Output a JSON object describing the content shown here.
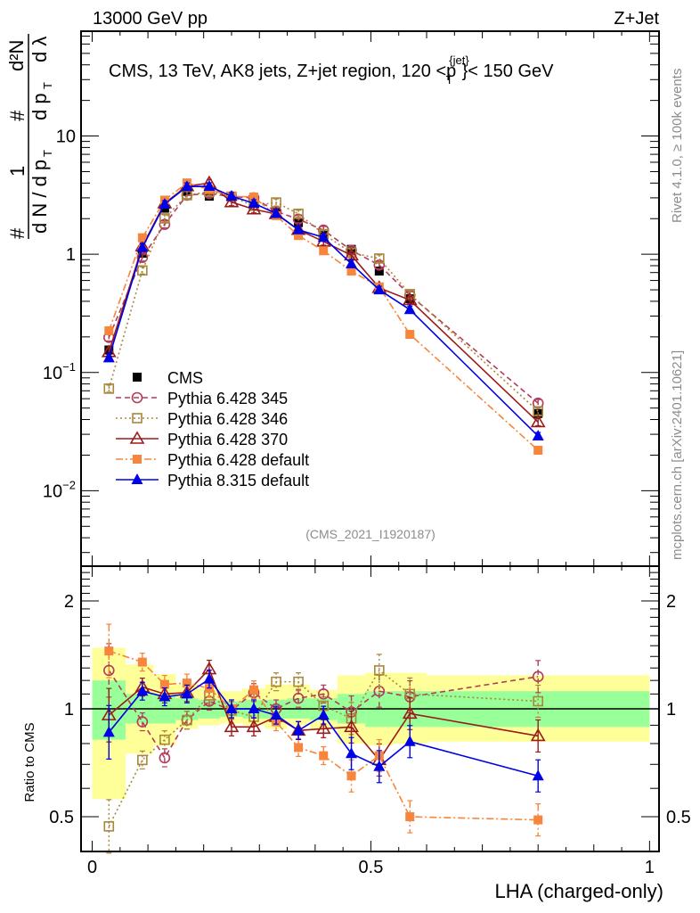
{
  "header": {
    "left": "13000 GeV pp",
    "right": "Z+Jet"
  },
  "side_labels": {
    "rivet": "Rivet 4.1.0, ≥ 100k events",
    "mcplots": "mcplots.cern.ch [arXiv:2401.10621]"
  },
  "chart_data": [
    {
      "type": "line",
      "panel": "main",
      "title": "CMS, 13 TeV, AK8 jets, Z+jet region, 120 <p_T^{jet}< 150 GeV",
      "title_parts": {
        "main": "CMS, 13 TeV, AK8 jets, Z+jet region, 120 <p",
        "sup": "{jet}",
        "sub": "T",
        "tail": "}< 150 GeV"
      },
      "analysis_id": "(CMS_2021_I1920187)",
      "ylabel": "1/dN/dp_T d²N/dp_T dλ",
      "yscale": "log",
      "ylim": [
        0.0023,
        77
      ],
      "xlim": [
        -0.02,
        1.017
      ],
      "yticks": [
        {
          "value": 0.01,
          "base": "10",
          "exp": "−2"
        },
        {
          "value": 0.1,
          "base": "10",
          "exp": "−1"
        },
        {
          "value": 1,
          "label": "1"
        },
        {
          "value": 10,
          "label": "10"
        }
      ],
      "legend_position": "lower-left",
      "x": [
        0.03,
        0.09,
        0.13,
        0.17,
        0.21,
        0.25,
        0.29,
        0.33,
        0.37,
        0.415,
        0.465,
        0.515,
        0.57,
        0.8
      ],
      "series": [
        {
          "name": "CMS",
          "style": "data",
          "color": "#000000",
          "marker": "square-filled",
          "values": [
            0.155,
            1.02,
            2.45,
            3.4,
            3.1,
            3.1,
            2.7,
            2.3,
            1.85,
            1.45,
            1.1,
            0.72,
            0.42,
            0.045
          ]
        },
        {
          "name": "Pythia 6.428 345",
          "color": "#b23b5a",
          "marker": "circle-open",
          "dash": "6,4",
          "values": [
            0.198,
            0.94,
            1.79,
            3.16,
            3.26,
            3.07,
            3.0,
            2.3,
            1.98,
            1.6,
            1.08,
            0.81,
            0.45,
            0.055
          ]
        },
        {
          "name": "Pythia 6.428 346",
          "color": "#a8863c",
          "marker": "square-open",
          "dash": "2,3",
          "values": [
            0.073,
            0.73,
            2.01,
            3.16,
            3.38,
            3.07,
            2.57,
            2.74,
            2.2,
            1.48,
            1.03,
            0.92,
            0.46,
            0.047
          ]
        },
        {
          "name": "Pythia 6.428 370",
          "color": "#9b1b1b",
          "marker": "triangle-open",
          "dash": "",
          "values": [
            0.149,
            1.17,
            2.7,
            3.77,
            4.0,
            2.76,
            2.4,
            2.19,
            1.61,
            1.28,
            0.98,
            0.52,
            0.41,
            0.038
          ]
        },
        {
          "name": "Pythia 6.428 default",
          "color": "#f7853b",
          "marker": "square-filled",
          "dash": "8,3,2,3",
          "values": [
            0.225,
            1.38,
            2.87,
            4.01,
            3.53,
            3.1,
            3.05,
            2.12,
            1.44,
            1.07,
            0.72,
            0.53,
            0.21,
            0.022
          ]
        },
        {
          "name": "Pythia 8.315 default",
          "color": "#0000e6",
          "marker": "triangle-filled",
          "dash": "",
          "values": [
            0.133,
            1.14,
            2.65,
            3.74,
            3.75,
            3.1,
            2.7,
            2.21,
            1.61,
            1.39,
            0.83,
            0.5,
            0.34,
            0.029
          ]
        }
      ]
    },
    {
      "type": "line",
      "panel": "ratio",
      "ylabel": "Ratio to CMS",
      "xlabel": "LHA (charged-only)",
      "yscale": "log",
      "ylim": [
        0.4,
        2.5
      ],
      "xlim": [
        -0.02,
        1.017
      ],
      "xticks": [
        {
          "value": 0,
          "label": "0"
        },
        {
          "value": 0.5,
          "label": "0.5"
        },
        {
          "value": 1,
          "label": "1"
        }
      ],
      "yticks": [
        {
          "value": 0.5,
          "label": "0.5"
        },
        {
          "value": 1,
          "label": "1"
        },
        {
          "value": 2,
          "label": "2"
        }
      ],
      "bin_edges": [
        0.0,
        0.06,
        0.11,
        0.15,
        0.19,
        0.23,
        0.27,
        0.31,
        0.35,
        0.39,
        0.44,
        0.49,
        0.54,
        0.6,
        1.0
      ],
      "bands": {
        "stat_color": "#99ff99",
        "total_color": "#ffff99",
        "stat_low": [
          0.82,
          0.91,
          0.91,
          0.93,
          0.94,
          0.95,
          0.94,
          0.94,
          0.94,
          0.93,
          0.91,
          0.89,
          0.89,
          0.89
        ],
        "stat_high": [
          1.2,
          1.1,
          1.09,
          1.07,
          1.06,
          1.05,
          1.06,
          1.06,
          1.07,
          1.07,
          1.1,
          1.12,
          1.12,
          1.12
        ],
        "total_low": [
          0.56,
          0.75,
          0.79,
          0.88,
          0.9,
          0.91,
          0.9,
          0.88,
          0.9,
          0.88,
          0.8,
          0.79,
          0.8,
          0.81
        ],
        "total_high": [
          1.48,
          1.33,
          1.25,
          1.17,
          1.14,
          1.12,
          1.14,
          1.17,
          1.17,
          1.13,
          1.24,
          1.26,
          1.26,
          1.24
        ]
      },
      "x": [
        0.03,
        0.09,
        0.13,
        0.17,
        0.21,
        0.25,
        0.29,
        0.33,
        0.37,
        0.415,
        0.465,
        0.515,
        0.57,
        0.8
      ],
      "series": [
        {
          "name": "Pythia 6.428 345",
          "color": "#b23b5a",
          "marker": "circle-open",
          "dash": "6,4",
          "values": [
            1.28,
            0.92,
            0.73,
            0.93,
            1.05,
            0.99,
            1.11,
            1.0,
            1.07,
            1.1,
            0.98,
            1.12,
            1.08,
            1.23
          ]
        },
        {
          "name": "Pythia 6.428 346",
          "color": "#a8863c",
          "marker": "square-open",
          "dash": "2,3",
          "values": [
            0.47,
            0.72,
            0.82,
            0.93,
            1.09,
            0.99,
            0.95,
            1.19,
            1.19,
            1.02,
            0.94,
            1.28,
            1.1,
            1.05
          ]
        },
        {
          "name": "Pythia 6.428 370",
          "color": "#9b1b1b",
          "marker": "triangle-open",
          "dash": "",
          "values": [
            0.96,
            1.15,
            1.1,
            1.11,
            1.29,
            0.89,
            0.89,
            0.95,
            0.87,
            0.88,
            0.89,
            0.72,
            0.97,
            0.84
          ]
        },
        {
          "name": "Pythia 6.428 default",
          "color": "#f7853b",
          "marker": "square-filled",
          "dash": "8,3,2,3",
          "values": [
            1.45,
            1.35,
            1.17,
            1.18,
            1.14,
            1.0,
            1.13,
            0.92,
            0.78,
            0.74,
            0.65,
            0.74,
            0.5,
            0.49
          ]
        },
        {
          "name": "Pythia 8.315 default",
          "color": "#0000e6",
          "marker": "triangle-filled",
          "dash": "",
          "values": [
            0.86,
            1.12,
            1.08,
            1.1,
            1.21,
            1.0,
            1.0,
            0.96,
            0.87,
            0.96,
            0.75,
            0.69,
            0.81,
            0.65
          ]
        }
      ]
    }
  ]
}
